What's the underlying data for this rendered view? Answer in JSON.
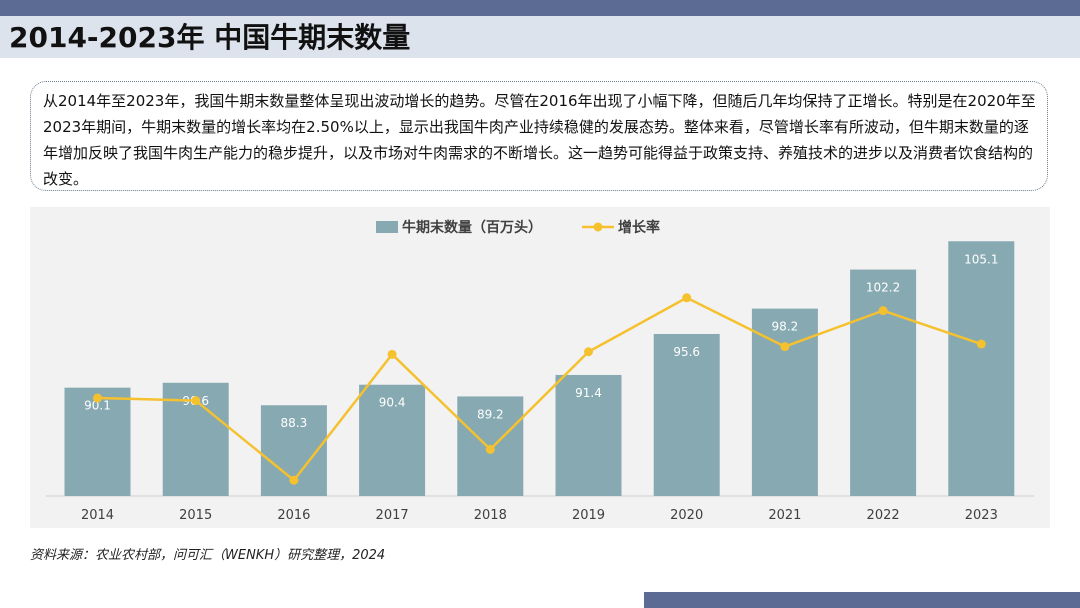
{
  "page": {
    "title": "2014-2023年 中国牛期末数量",
    "summary": "从2014年至2023年，我国牛期末数量整体呈现出波动增长的趋势。尽管在2016年出现了小幅下降，但随后几年均保持了正增长。特别是在2020年至2023年期间，牛期末数量的增长率均在2.50%以上，显示出我国牛肉产业持续稳健的发展态势。整体来看，尽管增长率有所波动，但牛期末数量的逐年增加反映了我国牛肉生产能力的稳步提升，以及市场对牛肉需求的不断增长。这一趋势可能得益于政策支持、养殖技术的进步以及消费者饮食结构的改变。",
    "source": "资料来源：农业农村部，问可汇（WENKH）研究整理，2024"
  },
  "colors": {
    "bar": "#87a9b1",
    "line": "#f5c12e",
    "band": "#5b6b94",
    "title_bg": "#dde3ec"
  },
  "chart_data": {
    "type": "bar",
    "categories": [
      "2014",
      "2015",
      "2016",
      "2017",
      "2018",
      "2019",
      "2020",
      "2021",
      "2022",
      "2023"
    ],
    "series": [
      {
        "name": "牛期末数量（百万头）",
        "type": "bar",
        "values": [
          90.1,
          90.6,
          88.3,
          90.4,
          89.2,
          91.4,
          95.6,
          98.2,
          102.2,
          105.1
        ],
        "data_labels": [
          "90.1",
          "90.6",
          "88.3",
          "90.4",
          "89.2",
          "91.4",
          "95.6",
          "98.2",
          "102.2",
          "105.1"
        ]
      },
      {
        "name": "增长率",
        "type": "line",
        "values_percent": [
          0.7,
          0.6,
          -2.5,
          2.4,
          -1.3,
          2.5,
          4.6,
          2.7,
          4.1,
          2.8
        ]
      }
    ],
    "legend": "top-center",
    "grid": false
  }
}
